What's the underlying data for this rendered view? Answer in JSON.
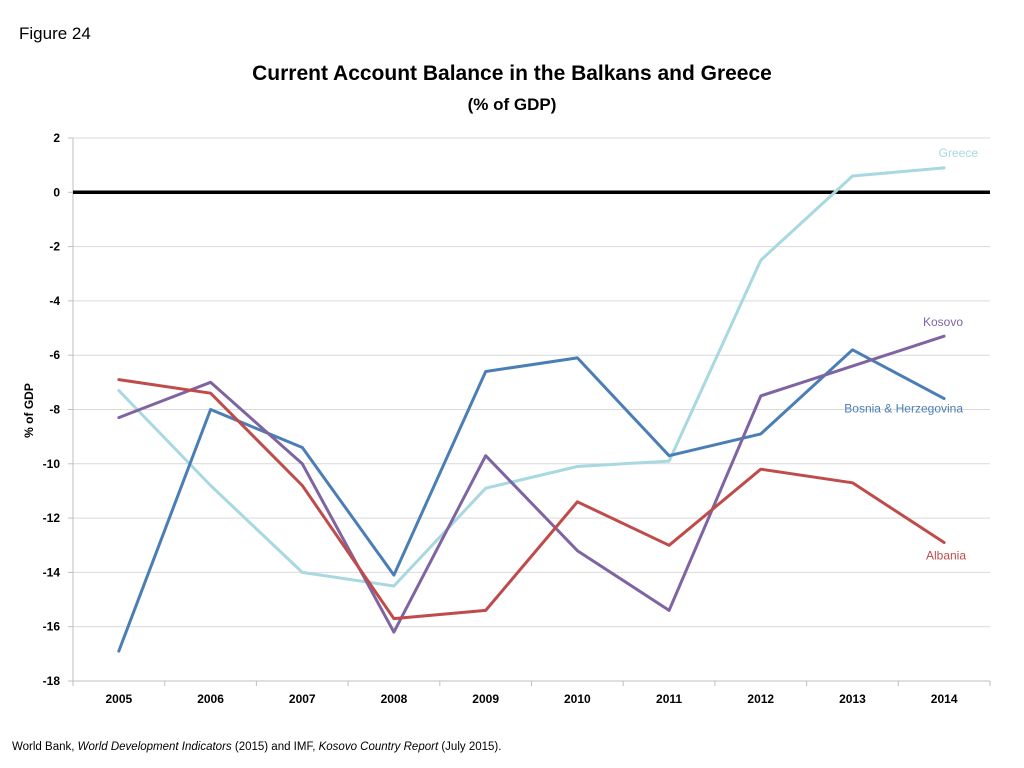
{
  "figure_label": "Figure 24",
  "source": {
    "prefix": "World Bank, ",
    "italic1": "World Development Indicators",
    "middle": " (2015) and IMF, ",
    "italic2": "Kosovo Country Report",
    "suffix": " (July 2015)."
  },
  "colors": {
    "Greece": "#a8d8e0",
    "Bosnia & Herzegovina": "#4a7eb5",
    "Kosovo": "#7f64a2",
    "Albania": "#bf4b4b",
    "zero_line": "#000000",
    "grid": "#d9d9d9",
    "axis": "#bfbfbf"
  },
  "chart_data": {
    "type": "line",
    "title": "Current Account Balance in the Balkans and Greece",
    "subtitle": "(% of GDP)",
    "xlabel": "",
    "ylabel": "% of GDP",
    "ylim": [
      -18,
      2
    ],
    "yticks": [
      2,
      0,
      -2,
      -4,
      -6,
      -8,
      -10,
      -12,
      -14,
      -16,
      -18
    ],
    "grid": true,
    "categories": [
      "2005",
      "2006",
      "2007",
      "2008",
      "2009",
      "2010",
      "2011",
      "2012",
      "2013",
      "2014"
    ],
    "series": [
      {
        "name": "Greece",
        "label": "Greece",
        "values": [
          -7.3,
          -10.8,
          -14.0,
          -14.5,
          -10.9,
          -10.1,
          -9.9,
          -2.5,
          0.6,
          0.9
        ]
      },
      {
        "name": "Bosnia & Herzegovina",
        "label": "Bosnia & Herzegovina",
        "values": [
          -16.9,
          -8.0,
          -9.4,
          -14.1,
          -6.6,
          -6.1,
          -9.7,
          -8.9,
          -5.8,
          -7.6
        ]
      },
      {
        "name": "Kosovo",
        "label": "Kosovo",
        "values": [
          -8.3,
          -7.0,
          -10.0,
          -16.2,
          -9.7,
          -13.2,
          -15.4,
          -7.5,
          -6.4,
          -5.3
        ]
      },
      {
        "name": "Albania",
        "label": "Albania",
        "values": [
          -6.9,
          -7.4,
          -10.8,
          -15.7,
          -15.4,
          -11.4,
          -13.0,
          -10.2,
          -10.7,
          -12.9
        ]
      }
    ]
  }
}
